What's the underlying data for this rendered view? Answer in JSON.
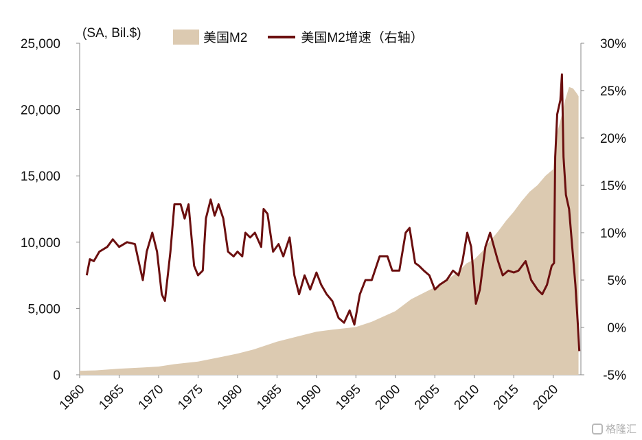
{
  "chart_data": {
    "type": "area",
    "unit_label": "(SA, Bil.$)",
    "x_ticks": [
      "1960",
      "1965",
      "1970",
      "1975",
      "1980",
      "1985",
      "1990",
      "1995",
      "2000",
      "2005",
      "2010",
      "2015",
      "2020"
    ],
    "y_left_ticks": [
      "0",
      "5,000",
      "10,000",
      "15,000",
      "20,000",
      "25,000"
    ],
    "y_right_ticks": [
      "-5%",
      "0%",
      "5%",
      "10%",
      "15%",
      "20%",
      "25%",
      "30%"
    ],
    "ylim_left": [
      0,
      25000
    ],
    "ylim_right": [
      -5,
      30
    ],
    "xlim": [
      1960,
      2023.5
    ],
    "legend_position": "top-center",
    "series": [
      {
        "name": "美国M2",
        "type": "area",
        "axis": "left",
        "color": "#dccab1",
        "points": [
          [
            1960,
            300
          ],
          [
            1962,
            330
          ],
          [
            1965,
            460
          ],
          [
            1968,
            550
          ],
          [
            1970,
            620
          ],
          [
            1972,
            800
          ],
          [
            1975,
            1000
          ],
          [
            1978,
            1350
          ],
          [
            1980,
            1600
          ],
          [
            1982,
            1900
          ],
          [
            1985,
            2500
          ],
          [
            1988,
            2950
          ],
          [
            1990,
            3250
          ],
          [
            1992,
            3400
          ],
          [
            1995,
            3600
          ],
          [
            1997,
            4000
          ],
          [
            2000,
            4800
          ],
          [
            2002,
            5700
          ],
          [
            2004,
            6300
          ],
          [
            2006,
            6900
          ],
          [
            2008,
            7800
          ],
          [
            2009,
            8400
          ],
          [
            2010,
            8700
          ],
          [
            2011,
            9300
          ],
          [
            2012,
            10100
          ],
          [
            2013,
            10800
          ],
          [
            2014,
            11600
          ],
          [
            2015,
            12300
          ],
          [
            2016,
            13100
          ],
          [
            2017,
            13800
          ],
          [
            2018,
            14300
          ],
          [
            2019,
            15000
          ],
          [
            2020.0,
            15500
          ],
          [
            2020.3,
            17800
          ],
          [
            2020.6,
            18500
          ],
          [
            2021,
            19400
          ],
          [
            2021.5,
            20700
          ],
          [
            2022,
            21700
          ],
          [
            2022.5,
            21600
          ],
          [
            2023,
            21200
          ],
          [
            2023.2,
            21000
          ]
        ]
      },
      {
        "name": "美国M2增速（右轴）",
        "type": "line",
        "axis": "right",
        "color": "#6b0f0f",
        "points": [
          [
            1960.9,
            5.5
          ],
          [
            1961.3,
            7.2
          ],
          [
            1961.8,
            7.0
          ],
          [
            1962.5,
            8.0
          ],
          [
            1963.5,
            8.5
          ],
          [
            1964.2,
            9.3
          ],
          [
            1965,
            8.5
          ],
          [
            1966,
            9.0
          ],
          [
            1967,
            8.8
          ],
          [
            1967.6,
            6.5
          ],
          [
            1968,
            5.0
          ],
          [
            1968.5,
            8.0
          ],
          [
            1969.2,
            10.0
          ],
          [
            1969.8,
            8.0
          ],
          [
            1970.4,
            3.5
          ],
          [
            1970.8,
            2.8
          ],
          [
            1971.5,
            8.0
          ],
          [
            1972,
            13.0
          ],
          [
            1972.8,
            13.0
          ],
          [
            1973.3,
            11.5
          ],
          [
            1973.8,
            13.0
          ],
          [
            1974.5,
            6.5
          ],
          [
            1975,
            5.5
          ],
          [
            1975.6,
            6.0
          ],
          [
            1976,
            11.5
          ],
          [
            1976.6,
            13.5
          ],
          [
            1977.1,
            11.8
          ],
          [
            1977.6,
            13.0
          ],
          [
            1978.2,
            11.5
          ],
          [
            1978.8,
            8.0
          ],
          [
            1979.5,
            7.5
          ],
          [
            1980,
            8.0
          ],
          [
            1980.6,
            7.5
          ],
          [
            1981,
            10.0
          ],
          [
            1981.6,
            9.5
          ],
          [
            1982.2,
            10.0
          ],
          [
            1983,
            8.5
          ],
          [
            1983.3,
            12.5
          ],
          [
            1983.8,
            12.0
          ],
          [
            1984.5,
            8.0
          ],
          [
            1985.2,
            8.8
          ],
          [
            1985.8,
            7.5
          ],
          [
            1986.6,
            9.5
          ],
          [
            1987.2,
            5.5
          ],
          [
            1987.8,
            3.5
          ],
          [
            1988.5,
            5.5
          ],
          [
            1989.2,
            4.0
          ],
          [
            1990,
            5.8
          ],
          [
            1990.6,
            4.5
          ],
          [
            1991.3,
            3.5
          ],
          [
            1992,
            2.8
          ],
          [
            1992.8,
            1.0
          ],
          [
            1993.5,
            0.5
          ],
          [
            1994.2,
            1.8
          ],
          [
            1994.8,
            0.3
          ],
          [
            1995.5,
            3.5
          ],
          [
            1996.2,
            5.0
          ],
          [
            1997,
            5.0
          ],
          [
            1998,
            7.5
          ],
          [
            1999,
            7.5
          ],
          [
            1999.6,
            6.0
          ],
          [
            2000.5,
            6.0
          ],
          [
            2001.3,
            10.0
          ],
          [
            2001.8,
            10.5
          ],
          [
            2002.5,
            6.8
          ],
          [
            2003,
            6.5
          ],
          [
            2003.6,
            6.0
          ],
          [
            2004.3,
            5.5
          ],
          [
            2005,
            4.0
          ],
          [
            2005.6,
            4.5
          ],
          [
            2006.5,
            5.0
          ],
          [
            2007.3,
            6.0
          ],
          [
            2008,
            5.5
          ],
          [
            2008.5,
            7.0
          ],
          [
            2009.1,
            10.0
          ],
          [
            2009.6,
            8.5
          ],
          [
            2010.2,
            2.5
          ],
          [
            2010.7,
            4.0
          ],
          [
            2011.4,
            8.5
          ],
          [
            2012,
            10.0
          ],
          [
            2012.5,
            8.5
          ],
          [
            2013,
            7.0
          ],
          [
            2013.6,
            5.5
          ],
          [
            2014.3,
            6.0
          ],
          [
            2015,
            5.8
          ],
          [
            2015.6,
            6.0
          ],
          [
            2016.5,
            7.0
          ],
          [
            2017.2,
            5.0
          ],
          [
            2018,
            4.0
          ],
          [
            2018.6,
            3.5
          ],
          [
            2019.2,
            4.5
          ],
          [
            2019.8,
            6.5
          ],
          [
            2020.1,
            6.8
          ],
          [
            2020.25,
            18.0
          ],
          [
            2020.5,
            22.5
          ],
          [
            2020.9,
            24.0
          ],
          [
            2021.1,
            26.7
          ],
          [
            2021.3,
            18.0
          ],
          [
            2021.6,
            14.0
          ],
          [
            2022,
            12.5
          ],
          [
            2022.4,
            8.5
          ],
          [
            2022.8,
            4.5
          ],
          [
            2023.1,
            0.5
          ],
          [
            2023.3,
            -2.5
          ]
        ]
      }
    ]
  },
  "watermark": "格隆汇"
}
